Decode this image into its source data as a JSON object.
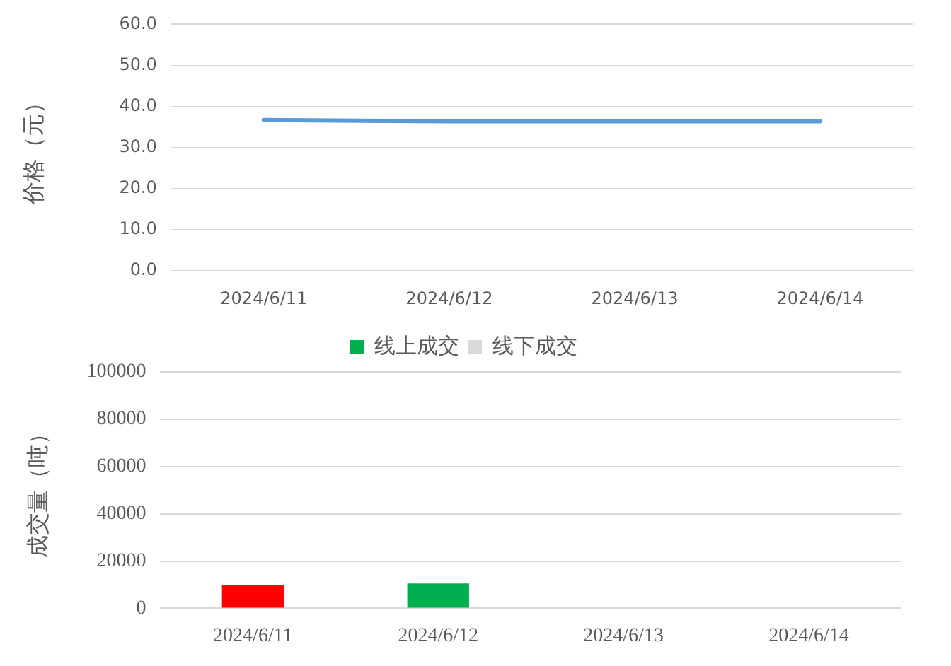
{
  "chart_data": [
    {
      "type": "line",
      "ylabel": "价格（元）",
      "categories": [
        "2024/6/11",
        "2024/6/12",
        "2024/6/13",
        "2024/6/14"
      ],
      "series": [
        {
          "color": "#5b9bd5",
          "values": [
            36.7,
            36.4,
            36.4,
            36.4
          ]
        }
      ],
      "ylim": [
        0,
        60
      ],
      "yticks": [
        {
          "value": 0,
          "label": "0.0"
        },
        {
          "value": 10,
          "label": "10.0"
        },
        {
          "value": 20,
          "label": "20.0"
        },
        {
          "value": 30,
          "label": "30.0"
        },
        {
          "value": 40,
          "label": "40.0"
        },
        {
          "value": 50,
          "label": "50.0"
        },
        {
          "value": 60,
          "label": "60.0"
        }
      ],
      "grid": "y",
      "legend": false
    },
    {
      "type": "bar",
      "ylabel": "成交量（吨）",
      "categories": [
        "2024/6/11",
        "2024/6/12",
        "2024/6/13",
        "2024/6/14"
      ],
      "series": [
        {
          "name": "线上成交",
          "color": "#00b050",
          "colors": [
            "#ff0000",
            "#00b050",
            "#00b050",
            "#00b050"
          ],
          "values": [
            9800,
            10500,
            null,
            null
          ]
        },
        {
          "name": "线下成交",
          "color": "#d9d9d9",
          "values": [
            null,
            null,
            null,
            null
          ]
        }
      ],
      "stacked": true,
      "ylim": [
        0,
        100000
      ],
      "yticks": [
        0,
        20000,
        40000,
        60000,
        80000,
        100000
      ],
      "grid": "y",
      "legend": "top"
    }
  ]
}
